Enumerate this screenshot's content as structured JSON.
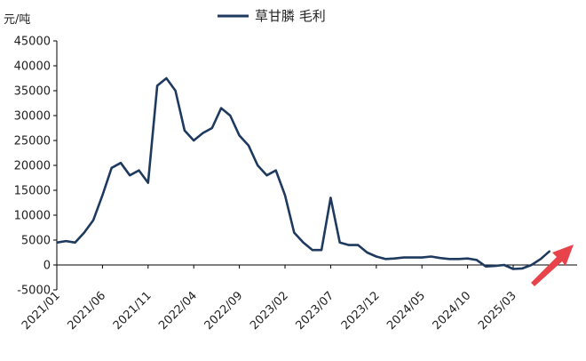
{
  "chart_data": {
    "type": "line",
    "title": "",
    "xlabel": "",
    "ylabel": "元/吨",
    "ylim": [
      -5000,
      45000
    ],
    "yticks": [
      -5000,
      0,
      5000,
      10000,
      15000,
      20000,
      25000,
      30000,
      35000,
      40000,
      45000
    ],
    "ytick_labels": [
      "-5000",
      "0",
      "5000",
      "10000",
      "15000",
      "20000",
      "25000",
      "30000",
      "35000",
      "40000",
      "45000"
    ],
    "xlim": [
      "2021/01",
      "2025/10"
    ],
    "xticks": [
      "2021/01",
      "2021/06",
      "2021/11",
      "2022/04",
      "2022/09",
      "2023/02",
      "2023/07",
      "2023/12",
      "2024/05",
      "2024/10",
      "2025/03"
    ],
    "grid": false,
    "legend_position": "top-center",
    "line_color": "#1f3a5f",
    "arrow_color": "#e8424b",
    "series": [
      {
        "name": "草甘膦 毛利",
        "x": [
          "2021/01",
          "2021/02",
          "2021/03",
          "2021/04",
          "2021/05",
          "2021/06",
          "2021/07",
          "2021/08",
          "2021/09",
          "2021/10",
          "2021/11",
          "2021/12",
          "2022/01",
          "2022/02",
          "2022/03",
          "2022/04",
          "2022/05",
          "2022/06",
          "2022/07",
          "2022/08",
          "2022/09",
          "2022/10",
          "2022/11",
          "2022/12",
          "2023/01",
          "2023/02",
          "2023/03",
          "2023/04",
          "2023/05",
          "2023/06",
          "2023/07",
          "2023/08",
          "2023/09",
          "2023/10",
          "2023/11",
          "2023/12",
          "2024/01",
          "2024/02",
          "2024/03",
          "2024/04",
          "2024/05",
          "2024/06",
          "2024/07",
          "2024/08",
          "2024/09",
          "2024/10",
          "2024/11",
          "2024/12",
          "2025/01",
          "2025/02",
          "2025/03",
          "2025/04",
          "2025/05",
          "2025/06",
          "2025/07"
        ],
        "values": [
          4500,
          4800,
          4500,
          6500,
          9000,
          14000,
          19500,
          20500,
          18000,
          19000,
          16500,
          36000,
          37500,
          35000,
          27000,
          25000,
          26500,
          27500,
          31500,
          30000,
          26000,
          24000,
          20000,
          18000,
          19000,
          14000,
          6500,
          4500,
          3000,
          3000,
          13500,
          4500,
          4000,
          4000,
          2500,
          1700,
          1200,
          1300,
          1500,
          1500,
          1500,
          1700,
          1400,
          1200,
          1200,
          1300,
          1000,
          -300,
          -200,
          0,
          -800,
          -700,
          0,
          1200,
          2800
        ]
      }
    ]
  }
}
